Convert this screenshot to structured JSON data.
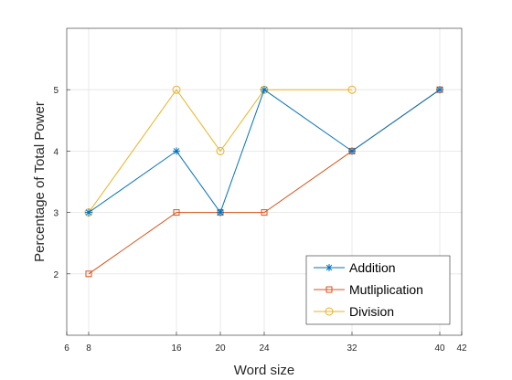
{
  "chart_data": {
    "type": "line",
    "xlabel": "Word size",
    "ylabel": "Percentage of Total Power",
    "xlim": [
      6,
      42
    ],
    "ylim": [
      1,
      6
    ],
    "xticks": [
      6,
      8,
      16,
      20,
      24,
      32,
      40,
      42
    ],
    "yticks": [
      2,
      3,
      4,
      5
    ],
    "grid": true,
    "legend_position": "bottom-right",
    "series": [
      {
        "name": "Addition",
        "marker": "asterisk",
        "color": "#0072BD",
        "x": [
          8,
          16,
          20,
          24,
          32,
          40
        ],
        "y": [
          3,
          4,
          3,
          5,
          4,
          5
        ]
      },
      {
        "name": "Mutliplication",
        "marker": "square",
        "color": "#D95319",
        "x": [
          8,
          16,
          20,
          24,
          32,
          40
        ],
        "y": [
          2,
          3,
          3,
          3,
          4,
          5
        ]
      },
      {
        "name": "Division",
        "marker": "circle",
        "color": "#EDB120",
        "x": [
          8,
          16,
          20,
          24,
          32
        ],
        "y": [
          3,
          5,
          4,
          5,
          5
        ]
      }
    ]
  }
}
